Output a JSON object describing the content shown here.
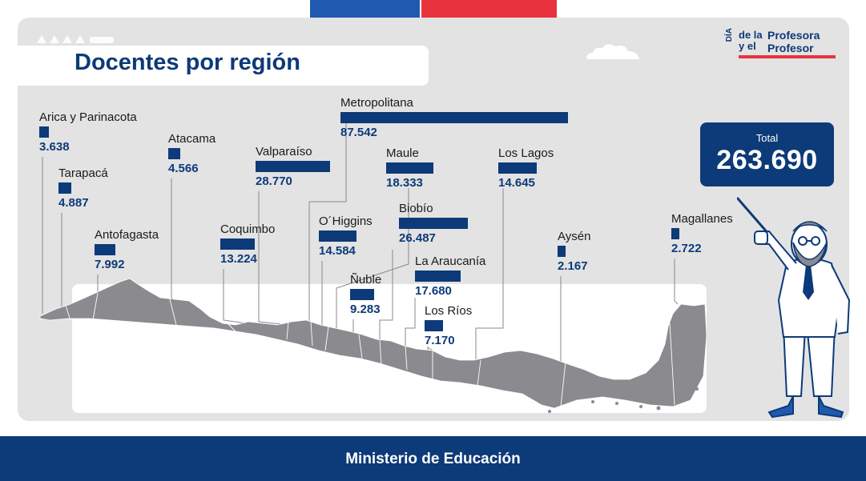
{
  "header": {
    "title": "Docentes por región",
    "flag_colors": [
      "#1f5ab0",
      "#e8333f"
    ]
  },
  "logo": {
    "vertical_text": "DÍA",
    "small_line1": "de la",
    "small_line2": "y el",
    "big_line1": "Profesora",
    "big_line2": "Profesor"
  },
  "total": {
    "label": "Total",
    "value": "263.690"
  },
  "footer": {
    "text": "Ministerio de Educación"
  },
  "colors": {
    "primary": "#0d3a78",
    "card_bg": "#e3e3e3",
    "map_gray": "#8a8a8f",
    "accent_red": "#e8333f"
  },
  "chart_data": {
    "type": "bar",
    "title": "Docentes por región",
    "categories": [
      "Arica y Parinacota",
      "Tarapacá",
      "Antofagasta",
      "Atacama",
      "Coquimbo",
      "Valparaíso",
      "Metropolitana",
      "O´Higgins",
      "Maule",
      "Ñuble",
      "Biobío",
      "La Araucanía",
      "Los Ríos",
      "Los Lagos",
      "Aysén",
      "Magallanes"
    ],
    "values": [
      3638,
      4887,
      7992,
      4566,
      13224,
      28770,
      87542,
      14584,
      18333,
      9283,
      26487,
      17680,
      7170,
      14645,
      2167,
      2722
    ],
    "value_labels": [
      "3.638",
      "4.887",
      "7.992",
      "4.566",
      "13.224",
      "28.770",
      "87.542",
      "14.584",
      "18.333",
      "9.283",
      "26.487",
      "17.680",
      "7.170",
      "14.645",
      "2.167",
      "2.722"
    ],
    "total": 263690
  }
}
